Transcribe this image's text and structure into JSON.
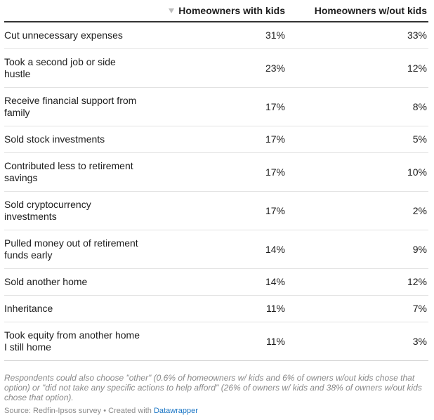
{
  "table": {
    "headers": [
      "",
      "Homeowners with kids",
      "Homeowners w/out kids"
    ],
    "rows": [
      {
        "label": "Cut unnecessary expenses",
        "with_kids": "31%",
        "without_kids": "33%"
      },
      {
        "label": "Took a second job or side hustle",
        "with_kids": "23%",
        "without_kids": "12%"
      },
      {
        "label": "Receive financial support from family",
        "with_kids": "17%",
        "without_kids": "8%"
      },
      {
        "label": "Sold stock investments",
        "with_kids": "17%",
        "without_kids": "5%"
      },
      {
        "label": "Contributed less to retirement savings",
        "with_kids": "17%",
        "without_kids": "10%"
      },
      {
        "label": "Sold cryptocurrency investments",
        "with_kids": "17%",
        "without_kids": "2%"
      },
      {
        "label": "Pulled money out of retirement funds early",
        "with_kids": "14%",
        "without_kids": "9%"
      },
      {
        "label": "Sold another home",
        "with_kids": "14%",
        "without_kids": "12%"
      },
      {
        "label": "Inheritance",
        "with_kids": "11%",
        "without_kids": "7%"
      },
      {
        "label": "Took equity from another home I still home",
        "with_kids": "11%",
        "without_kids": "3%"
      }
    ]
  },
  "chart_data": {
    "type": "table",
    "columns": [
      "Homeowners with kids",
      "Homeowners w/out kids"
    ],
    "categories": [
      "Cut unnecessary expenses",
      "Took a second job or side hustle",
      "Receive financial support from family",
      "Sold stock investments",
      "Contributed less to retirement savings",
      "Sold cryptocurrency investments",
      "Pulled money out of retirement funds early",
      "Sold another home",
      "Inheritance",
      "Took equity from another home I still home"
    ],
    "series": [
      {
        "name": "Homeowners with kids",
        "values": [
          31,
          23,
          17,
          17,
          17,
          17,
          14,
          14,
          11,
          11
        ]
      },
      {
        "name": "Homeowners w/out kids",
        "values": [
          33,
          12,
          8,
          5,
          10,
          2,
          9,
          12,
          7,
          3
        ]
      }
    ],
    "unit": "%",
    "sorted_by": "Homeowners with kids",
    "sort_order": "descending"
  },
  "notes": "Respondents could also choose \"other\" (0.6% of homeowners w/ kids and 6% of owners w/out kids chose that option) or \"did not take any specific actions to help afford\" (26% of owners w/ kids and 38% of owners w/out kids chose that option).",
  "footer": {
    "source": "Source: Redfin-Ipsos survey • Created with ",
    "link_text": "Datawrapper"
  },
  "colors": {
    "text": "#1d1d1d",
    "muted": "#8a8a8a",
    "link": "#1b76c5",
    "header_rule": "#333333",
    "row_rule": "#e2e2e2"
  },
  "icons": {
    "sort": "sort-descending-icon"
  }
}
